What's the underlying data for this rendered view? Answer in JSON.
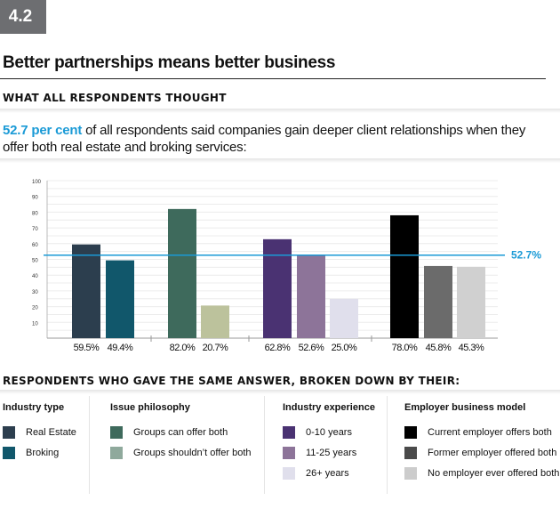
{
  "badge": "4.2",
  "title": "Better partnerships means better business",
  "section1": "WHAT ALL RESPONDENTS THOUGHT",
  "description": {
    "highlight": "52.7 per cent",
    "text": " of all respondents said companies gain deeper client relationships when they offer both real estate and broking services:"
  },
  "section2": "RESPONDENTS WHO GAVE THE SAME ANSWER, BROKEN DOWN BY THEIR:",
  "chart_data": {
    "type": "bar",
    "ylim": [
      0,
      100
    ],
    "yticks": [
      "10",
      "20",
      "30",
      "40",
      "50",
      "60",
      "70",
      "80",
      "90",
      "100"
    ],
    "reference": {
      "value": 52.7,
      "label": "52.7%",
      "color": "#1a9ad6"
    },
    "groups": [
      {
        "name": "Industry type",
        "bars": [
          {
            "name": "Real Estate",
            "value": 59.5,
            "label": "59.5%",
            "color": "#2c3e4e"
          },
          {
            "name": "Broking",
            "value": 49.4,
            "label": "49.4%",
            "color": "#11576b"
          }
        ]
      },
      {
        "name": "Issue philosophy",
        "bars": [
          {
            "name": "Groups can offer both",
            "value": 82.0,
            "label": "82.0%",
            "color": "#3e6a5c"
          },
          {
            "name": "Groups shouldn't offer both",
            "value": 20.7,
            "label": "20.7%",
            "color": "#bcc29c"
          }
        ]
      },
      {
        "name": "Industry experience",
        "bars": [
          {
            "name": "0-10 years",
            "value": 62.8,
            "label": "62.8%",
            "color": "#4a3272"
          },
          {
            "name": "11-25 years",
            "value": 52.6,
            "label": "52.6%",
            "color": "#8d7499"
          },
          {
            "name": "26+ years",
            "value": 25.0,
            "label": "25.0%",
            "color": "#e0dfec"
          }
        ]
      },
      {
        "name": "Employer business model",
        "bars": [
          {
            "name": "Current employer offers both",
            "value": 78.0,
            "label": "78.0%",
            "color": "#000000"
          },
          {
            "name": "Former employer offered both",
            "value": 45.8,
            "label": "45.8%",
            "color": "#6b6b6b"
          },
          {
            "name": "No employer ever offered both",
            "value": 45.3,
            "label": "45.3%",
            "color": "#d0d0d0"
          }
        ]
      }
    ]
  },
  "legend": [
    {
      "title": "Industry type",
      "items": [
        {
          "label": "Real Estate",
          "color": "#2c3e4e"
        },
        {
          "label": "Broking",
          "color": "#11576b"
        }
      ]
    },
    {
      "title": "Issue philosophy",
      "items": [
        {
          "label": "Groups can offer both",
          "color": "#3e6a5c"
        },
        {
          "label": "Groups shouldn’t offer both",
          "color": "#8fa99c"
        }
      ]
    },
    {
      "title": "Industry experience",
      "items": [
        {
          "label": "0-10 years",
          "color": "#4a3272"
        },
        {
          "label": "11-25 years",
          "color": "#8d7499"
        },
        {
          "label": "26+ years",
          "color": "#e0dfec"
        }
      ]
    },
    {
      "title": "Employer business model",
      "items": [
        {
          "label": "Current employer offers both",
          "color": "#000000"
        },
        {
          "label": "Former employer offered both",
          "color": "#4a4a4a"
        },
        {
          "label": "No employer ever offered both",
          "color": "#cccccc"
        }
      ]
    }
  ]
}
